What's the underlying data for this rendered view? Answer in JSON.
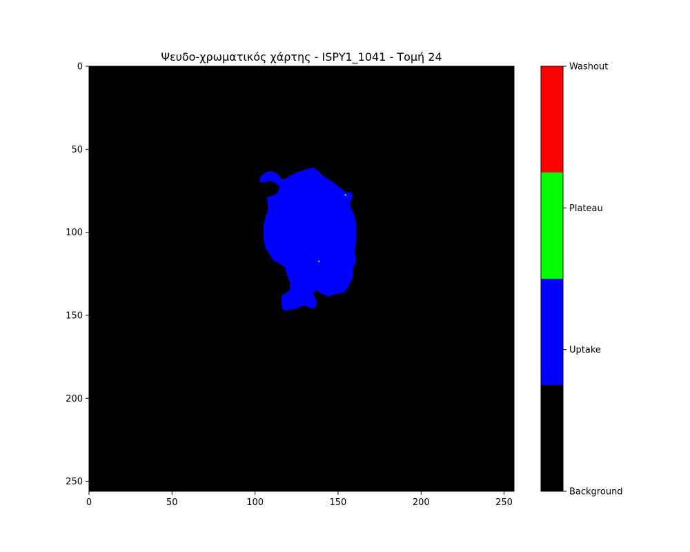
{
  "chart_data": {
    "type": "heatmap",
    "title": "Ψευδο-χρωματικός χάρτης - ISPY1_1041 - Τομή 24",
    "xlabel": "",
    "ylabel": "",
    "xlim": [
      0,
      256
    ],
    "ylim": [
      256,
      0
    ],
    "xticks": [
      0,
      50,
      100,
      150,
      200,
      250
    ],
    "yticks": [
      0,
      50,
      100,
      150,
      200,
      250
    ],
    "grid": false,
    "background_class": "Background",
    "region": {
      "class": "Uptake",
      "outline": [
        [
          103,
          67
        ],
        [
          106,
          64
        ],
        [
          110,
          63
        ],
        [
          114,
          65
        ],
        [
          116,
          68
        ],
        [
          118,
          68
        ],
        [
          121,
          66
        ],
        [
          125,
          64
        ],
        [
          131,
          62
        ],
        [
          135,
          61
        ],
        [
          138,
          63
        ],
        [
          141,
          66
        ],
        [
          147,
          70
        ],
        [
          151,
          73
        ],
        [
          155,
          76
        ],
        [
          158,
          76
        ],
        [
          159,
          79
        ],
        [
          157,
          82
        ],
        [
          158,
          86
        ],
        [
          160,
          90
        ],
        [
          161,
          95
        ],
        [
          161,
          104
        ],
        [
          160,
          112
        ],
        [
          161,
          118
        ],
        [
          159,
          121
        ],
        [
          159,
          127
        ],
        [
          156,
          133
        ],
        [
          154,
          136
        ],
        [
          150,
          137
        ],
        [
          146,
          138
        ],
        [
          144,
          139
        ],
        [
          143,
          138
        ],
        [
          140,
          137
        ],
        [
          137,
          135
        ],
        [
          135,
          137
        ],
        [
          137,
          141
        ],
        [
          137,
          145
        ],
        [
          134,
          146
        ],
        [
          130,
          144
        ],
        [
          127,
          145
        ],
        [
          125,
          146
        ],
        [
          119,
          147
        ],
        [
          117,
          147
        ],
        [
          116,
          144
        ],
        [
          116,
          138
        ],
        [
          118,
          137
        ],
        [
          121,
          135
        ],
        [
          121,
          130
        ],
        [
          119,
          125
        ],
        [
          118,
          121
        ],
        [
          115,
          119
        ],
        [
          111,
          117
        ],
        [
          108,
          112
        ],
        [
          106,
          109
        ],
        [
          105,
          103
        ],
        [
          105,
          96
        ],
        [
          106,
          92
        ],
        [
          108,
          86
        ],
        [
          107,
          79
        ],
        [
          110,
          78
        ],
        [
          113,
          77
        ],
        [
          115,
          73
        ],
        [
          112,
          70
        ],
        [
          108,
          69
        ],
        [
          106,
          70
        ],
        [
          103,
          70
        ]
      ]
    },
    "speckles": [
      {
        "class": "Plateau",
        "x": 138,
        "y": 117
      },
      {
        "class": "Plateau",
        "x": 154,
        "y": 77
      }
    ],
    "colorbar": {
      "classes": [
        "Background",
        "Uptake",
        "Plateau",
        "Washout"
      ],
      "colors": [
        "#000000",
        "#0000ff",
        "#00ff00",
        "#ff0000"
      ],
      "ticks": [
        {
          "label": "Background",
          "value": 0
        },
        {
          "label": "Uptake",
          "value": 1
        },
        {
          "label": "Plateau",
          "value": 2
        },
        {
          "label": "Washout",
          "value": 3
        }
      ],
      "range": [
        0,
        3
      ]
    }
  }
}
